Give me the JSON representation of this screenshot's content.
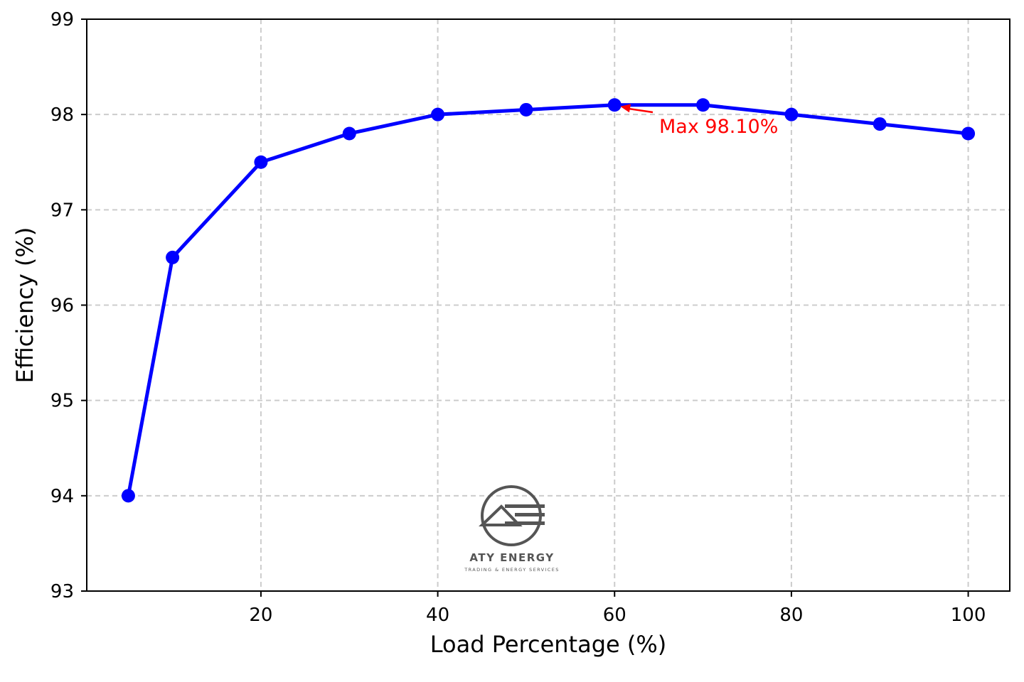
{
  "chart_data": {
    "type": "line",
    "title": "",
    "xlabel": "Load Percentage (%)",
    "ylabel": "Efficiency (%)",
    "xlim": [
      0.3,
      104.7
    ],
    "ylim": [
      93,
      99
    ],
    "x_ticks": [
      20,
      40,
      60,
      80,
      100
    ],
    "y_ticks": [
      93,
      94,
      95,
      96,
      97,
      98,
      99
    ],
    "grid": true,
    "legend": "none",
    "series": [
      {
        "color": "#0000ff",
        "marker": "circle",
        "x": [
          5,
          10,
          20,
          30,
          40,
          50,
          60,
          70,
          80,
          90,
          100
        ],
        "y": [
          94.0,
          96.5,
          97.5,
          97.8,
          98.0,
          98.05,
          98.1,
          98.1,
          98.0,
          97.9,
          97.8
        ]
      }
    ],
    "annotation": {
      "text": "Max 98.10%",
      "x": 60,
      "y": 98.1,
      "color": "#ff0000"
    }
  },
  "watermark": {
    "title": "ATY ENERGY",
    "subtitle": "TRADING & ENERGY SERVICES",
    "color": "#555555"
  }
}
